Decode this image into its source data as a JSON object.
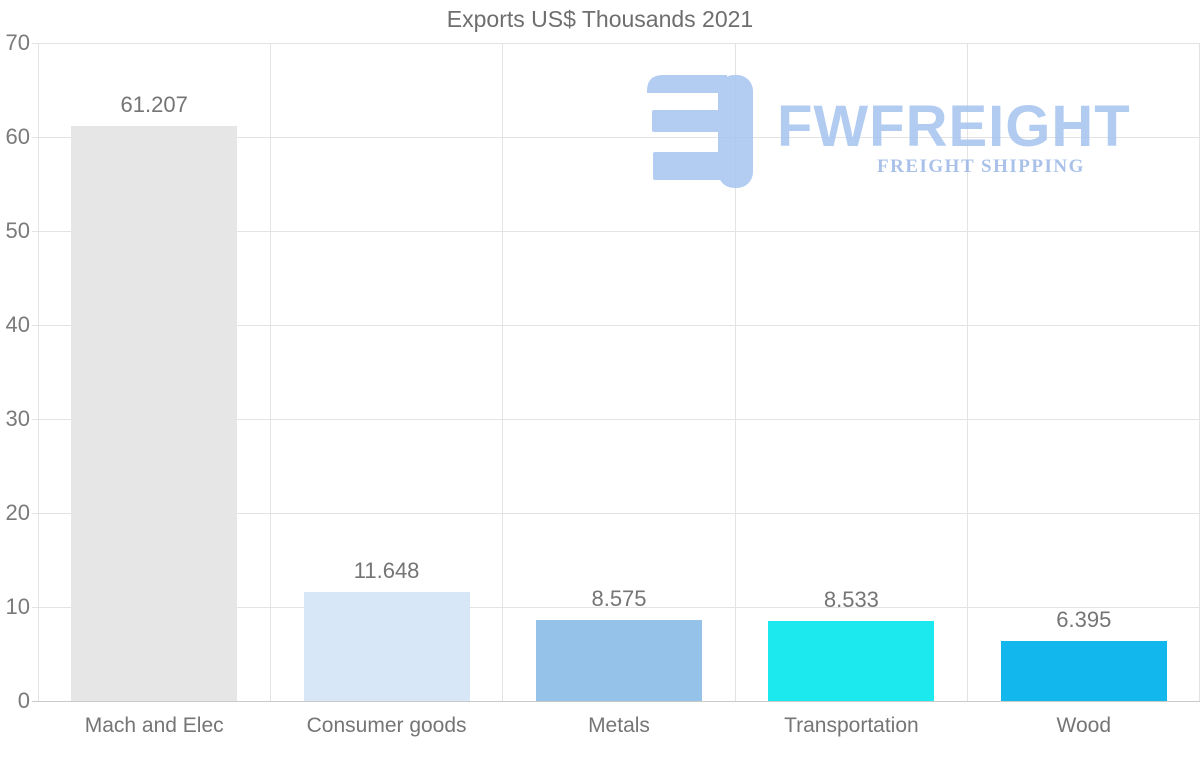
{
  "chart_data": {
    "type": "bar",
    "title": "Exports US$ Thousands 2021",
    "categories": [
      "Mach and Elec",
      "Consumer goods",
      "Metals",
      "Transportation",
      "Wood"
    ],
    "values": [
      61.207,
      11.648,
      8.575,
      8.533,
      6.395
    ],
    "value_labels": [
      "61.207",
      "11.648",
      "8.575",
      "8.533",
      "6.395"
    ],
    "bar_colors": [
      "#e6e6e6",
      "#d8e7f8",
      "#95c2e8",
      "#1ce9ee",
      "#12b7ee"
    ],
    "xlabel": "",
    "ylabel": "",
    "ylim": [
      0,
      70
    ],
    "yticks": [
      0,
      10,
      20,
      30,
      40,
      50,
      60,
      70
    ],
    "grid": true,
    "legend": "none"
  },
  "watermark": {
    "brand": "FWFREIGHT",
    "tagline": "FREIGHT SHIPPING",
    "brand_color": "#a5c3ef",
    "tagline_color": "#9bb7e6",
    "icon_color": "#a5c4f0"
  },
  "colors": {
    "background": "#ffffff",
    "title_text": "#6e6e6e",
    "value_label_text": "#757575",
    "xtick_text": "#757575",
    "ytick_text": "#7a7a7a",
    "gridline": "#e3e3e3",
    "axis_line": "#c9c9c9"
  }
}
